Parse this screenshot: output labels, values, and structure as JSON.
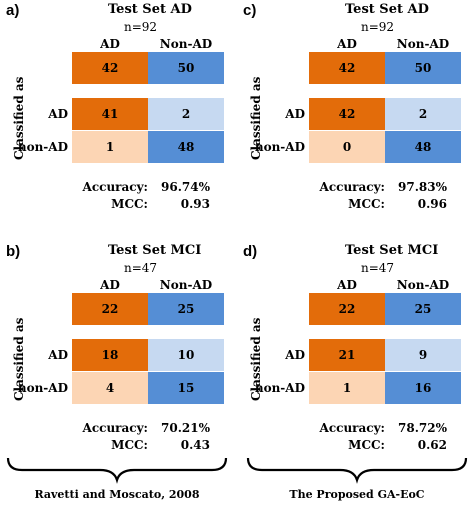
{
  "chart_data": [
    {
      "type": "table",
      "panel": "a)",
      "title": "Test Set AD",
      "n": "n=92",
      "columns": [
        "AD",
        "Non-AD"
      ],
      "totals": [
        42,
        50
      ],
      "row_axis_label": "Classified as",
      "rows": [
        {
          "label": "AD",
          "values": [
            41,
            2
          ]
        },
        {
          "label": "non-AD",
          "values": [
            1,
            48
          ]
        }
      ],
      "metrics": [
        {
          "label": "Accuracy:",
          "value": "96.74%"
        },
        {
          "label": "MCC:",
          "value": "0.93"
        }
      ]
    },
    {
      "type": "table",
      "panel": "c)",
      "title": "Test Set AD",
      "n": "n=92",
      "columns": [
        "AD",
        "Non-AD"
      ],
      "totals": [
        42,
        50
      ],
      "row_axis_label": "Classified as",
      "rows": [
        {
          "label": "AD",
          "values": [
            42,
            2
          ]
        },
        {
          "label": "non-AD",
          "values": [
            0,
            48
          ]
        }
      ],
      "metrics": [
        {
          "label": "Accuracy:",
          "value": "97.83%"
        },
        {
          "label": "MCC:",
          "value": "0.96"
        }
      ]
    },
    {
      "type": "table",
      "panel": "b)",
      "title": "Test Set MCI",
      "n": "n=47",
      "columns": [
        "AD",
        "Non-AD"
      ],
      "totals": [
        22,
        25
      ],
      "row_axis_label": "Classified as",
      "rows": [
        {
          "label": "AD",
          "values": [
            18,
            10
          ]
        },
        {
          "label": "non-AD",
          "values": [
            4,
            15
          ]
        }
      ],
      "metrics": [
        {
          "label": "Accuracy:",
          "value": "70.21%"
        },
        {
          "label": "MCC:",
          "value": "0.43"
        }
      ]
    },
    {
      "type": "table",
      "panel": "d)",
      "title": "Test Set MCI",
      "n": "n=47",
      "columns": [
        "AD",
        "Non-AD"
      ],
      "totals": [
        22,
        25
      ],
      "row_axis_label": "Classified as",
      "rows": [
        {
          "label": "AD",
          "values": [
            21,
            9
          ]
        },
        {
          "label": "non-AD",
          "values": [
            1,
            16
          ]
        }
      ],
      "metrics": [
        {
          "label": "Accuracy:",
          "value": "78.72%"
        },
        {
          "label": "MCC:",
          "value": "0.62"
        }
      ]
    }
  ],
  "captions": {
    "left": "Ravetti and Moscato, 2008",
    "right": "The Proposed GA-EoC"
  },
  "colors": {
    "ad_dark": "#e36c0a",
    "nonad_dark": "#558ed5",
    "ad_light": "#fcd5b4",
    "nonad_light": "#c6d9f1"
  }
}
